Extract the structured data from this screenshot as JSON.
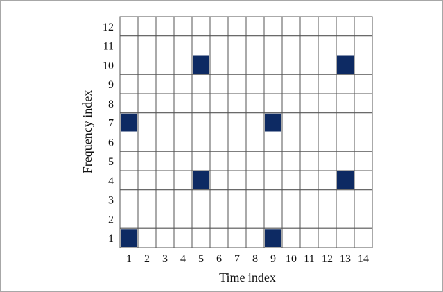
{
  "chart_data": {
    "type": "heatmap",
    "title": "",
    "xlabel": "Time index",
    "ylabel": "Frequency index",
    "x_categories": [
      "1",
      "2",
      "3",
      "4",
      "5",
      "6",
      "7",
      "8",
      "9",
      "10",
      "11",
      "12",
      "13",
      "14"
    ],
    "y_categories": [
      "1",
      "2",
      "3",
      "4",
      "5",
      "6",
      "7",
      "8",
      "9",
      "10",
      "11",
      "12"
    ],
    "filled_cells": [
      {
        "time": 1,
        "frequency": 1
      },
      {
        "time": 9,
        "frequency": 1
      },
      {
        "time": 5,
        "frequency": 4
      },
      {
        "time": 13,
        "frequency": 4
      },
      {
        "time": 1,
        "frequency": 7
      },
      {
        "time": 9,
        "frequency": 7
      },
      {
        "time": 5,
        "frequency": 10
      },
      {
        "time": 13,
        "frequency": 10
      }
    ],
    "fill_color": "#0d2a63",
    "grid": true
  }
}
